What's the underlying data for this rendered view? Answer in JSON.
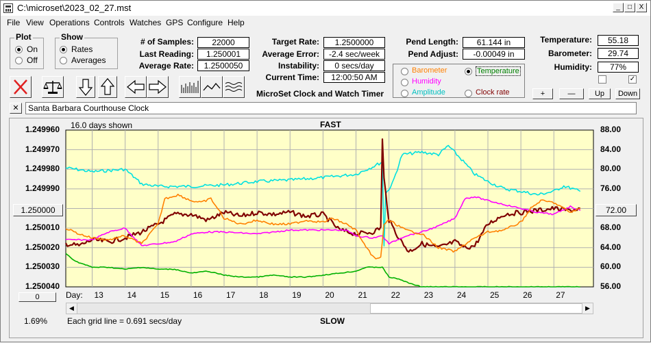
{
  "window": {
    "title": "C:\\microset\\2023_02_27.mst"
  },
  "window_buttons": {
    "minimize": "_",
    "maximize": "□",
    "close": "X"
  },
  "menu": [
    "File",
    "View",
    "Operations",
    "Controls",
    "Watches",
    "GPS",
    "Configure",
    "Help"
  ],
  "plot_group": {
    "label": "Plot",
    "options": [
      "On",
      "Off"
    ],
    "selected": "On"
  },
  "show_group": {
    "label": "Show",
    "options": [
      "Rates",
      "Averages"
    ],
    "selected": "Rates"
  },
  "stats": {
    "samples_label": "# of Samples:",
    "samples": "22000",
    "last_reading_label": "Last Reading:",
    "last_reading": "1.250001",
    "average_rate_label": "Average Rate:",
    "average_rate": "1.2500050",
    "target_rate_label": "Target Rate:",
    "target_rate": "1.2500000",
    "average_error_label": "Average Error:",
    "average_error": "-2.4 sec/week",
    "instability_label": "Instability:",
    "instability": "0 secs/day",
    "current_time_label": "Current Time:",
    "current_time": "12:00:50 AM",
    "pend_length_label": "Pend Length:",
    "pend_length": "61.144 in",
    "pend_adjust_label": "Pend Adjust:",
    "pend_adjust": "-0.00049 in",
    "temperature_label": "Temperature:",
    "temperature": "55.18",
    "barometer_label": "Barometer:",
    "barometer": "29.74",
    "humidity_label": "Humidity:",
    "humidity": "77%"
  },
  "app_caption": "MicroSet Clock and Watch Timer",
  "legend": {
    "items": [
      {
        "label": "Barometer",
        "color": "#ff8000",
        "selected": false
      },
      {
        "label": "Temperature",
        "color": "#008000",
        "selected": true
      },
      {
        "label": "Humidity",
        "color": "#ff00ff",
        "selected": false
      },
      {
        "label": "Amplitude",
        "color": "#00c0c0",
        "selected": false
      },
      {
        "label": "Clock rate",
        "color": "#800000",
        "selected": false
      }
    ]
  },
  "right_buttons": {
    "plus": "+",
    "minus": "—",
    "up": "Up",
    "down": "Down"
  },
  "clock_name": "Santa Barbara Courthouse Clock",
  "close_x": "✕",
  "chart_info": {
    "days_shown": "16.0 days shown",
    "fast_label": "FAST",
    "slow_label": "SLOW",
    "grid_note": "Each grid line = 0.691 secs/day",
    "percent": "1.69%",
    "center_button": "1.250000",
    "right_center_button": "72.00",
    "zero_button": "0",
    "day_label": "Day:"
  },
  "chart_data": {
    "type": "line",
    "x_ticks": [
      "13",
      "14",
      "15",
      "16",
      "17",
      "18",
      "19",
      "20",
      "21",
      "22",
      "23",
      "24",
      "25",
      "26",
      "27"
    ],
    "left_axis": {
      "ticks": [
        "1.249960",
        "1.249970",
        "1.249980",
        "1.249990",
        "1.250000",
        "1.250010",
        "1.250020",
        "1.250030",
        "1.250040"
      ],
      "range": [
        1.24996,
        1.25004
      ]
    },
    "right_axis": {
      "ticks": [
        "88.00",
        "84.00",
        "80.00",
        "76.00",
        "72.00",
        "68.00",
        "64.00",
        "60.00",
        "56.00"
      ],
      "range": [
        56,
        88
      ]
    },
    "grid": true,
    "x_range": [
      12.2,
      28.2
    ],
    "series": [
      {
        "name": "Amplitude",
        "color": "#00e0e0",
        "axis": "right",
        "x": [
          12.2,
          13,
          14,
          14.5,
          15,
          16,
          17,
          18,
          19,
          20,
          21,
          21.5,
          21.8,
          21.85,
          21.9,
          22.1,
          22.4,
          23,
          23.5,
          23.8,
          24.2,
          24.6,
          25,
          25.5,
          26,
          26.5,
          27,
          27.3,
          27.8
        ],
        "y": [
          80.3,
          79.5,
          80,
          77,
          76.5,
          76.5,
          76.8,
          77.5,
          77.8,
          78.3,
          79,
          80.5,
          81.5,
          64.5,
          75,
          77,
          83,
          83.5,
          83,
          84.8,
          82,
          79,
          77.5,
          76,
          75.5,
          74.8,
          75.5,
          76.6,
          75.5
        ]
      },
      {
        "name": "Clock rate",
        "color": "#800000",
        "axis": "left",
        "x": [
          12.2,
          12.6,
          13,
          13.5,
          14,
          14.5,
          15,
          15.5,
          16,
          16.5,
          17,
          17.5,
          18,
          18.5,
          19,
          19.5,
          20,
          20.5,
          21,
          21.5,
          21.75,
          21.8,
          21.85,
          22,
          22.3,
          22.6,
          23,
          23.5,
          24,
          24.3,
          24.6,
          25,
          25.5,
          26,
          26.5,
          27,
          27.5,
          27.8
        ],
        "y": [
          1.250018,
          1.250019,
          1.250016,
          1.250017,
          1.250015,
          1.250012,
          1.250008,
          1.250003,
          1.250003,
          1.250006,
          1.250002,
          1.250004,
          1.250002,
          1.250003,
          1.250002,
          1.250004,
          1.250003,
          1.250011,
          1.250013,
          1.250012,
          1.25001,
          1.249965,
          1.249985,
          1.250006,
          1.250015,
          1.250022,
          1.250018,
          1.25002,
          1.250017,
          1.25002,
          1.250019,
          1.250008,
          1.250003,
          1.250002,
          1.250001,
          1.25,
          1.250001,
          1.25
        ]
      },
      {
        "name": "Humidity",
        "color": "#ff00ff",
        "axis": "left",
        "x": [
          12.2,
          13,
          13.5,
          14,
          14.5,
          15,
          15.5,
          16,
          16.5,
          17,
          18,
          19,
          20,
          20.7,
          21,
          21.5,
          21.8,
          22,
          22.5,
          23,
          23.5,
          24,
          24.3,
          24.6,
          25,
          25.5,
          26,
          26.5,
          27,
          27.5,
          27.8
        ],
        "y": [
          1.250016,
          1.250016,
          1.250012,
          1.25001,
          1.250019,
          1.250018,
          1.250017,
          1.250013,
          1.250012,
          1.250012,
          1.250013,
          1.250011,
          1.250011,
          1.250011,
          1.250014,
          1.250015,
          1.250014,
          1.250018,
          1.250014,
          1.250012,
          1.250009,
          1.250005,
          1.249995,
          1.249994,
          1.249996,
          1.249998,
          1.25,
          1.250002,
          1.250003,
          1.249999,
          1.250001
        ]
      },
      {
        "name": "Barometer",
        "color": "#ff8000",
        "axis": "left",
        "x": [
          12.2,
          12.6,
          13,
          13.5,
          14,
          14.5,
          15,
          15.2,
          15.6,
          16,
          16.3,
          16.6,
          17,
          17.5,
          18,
          18.5,
          19,
          19.5,
          20,
          20.3,
          20.7,
          21,
          21.3,
          21.6,
          21.75,
          21.85,
          22,
          22.5,
          23,
          23.5,
          24,
          24.5,
          25,
          25.5,
          26,
          26.3,
          26.6,
          27,
          27.5,
          27.8
        ],
        "y": [
          1.25001,
          1.250013,
          1.250015,
          1.250016,
          1.250014,
          1.250018,
          1.250008,
          1.249995,
          1.249993,
          1.249996,
          1.249997,
          1.249995,
          1.250005,
          1.250008,
          1.250006,
          1.250008,
          1.250008,
          1.250006,
          1.250007,
          1.250005,
          1.250008,
          1.250011,
          1.25002,
          1.250026,
          1.250025,
          1.250008,
          1.250006,
          1.250011,
          1.250013,
          1.25002,
          1.250022,
          1.250016,
          1.250012,
          1.250011,
          1.250007,
          1.25,
          1.249996,
          1.249997,
          1.250002,
          1.25
        ]
      },
      {
        "name": "Temperature",
        "color": "#00b000",
        "axis": "left",
        "x": [
          12.2,
          12.5,
          13,
          13.5,
          14,
          14.5,
          15,
          15.5,
          16,
          16.5,
          17,
          17.5,
          18,
          18.5,
          19,
          19.5,
          20,
          20.5,
          21,
          21.3,
          21.6,
          21.8,
          22,
          22.3,
          22.6,
          23,
          24,
          25,
          26,
          27,
          27.8
        ],
        "y": [
          1.250023,
          1.250027,
          1.25003,
          1.25003,
          1.250031,
          1.25003,
          1.250031,
          1.250031,
          1.250033,
          1.250032,
          1.250034,
          1.250035,
          1.250035,
          1.250034,
          1.250035,
          1.250035,
          1.250034,
          1.250033,
          1.250032,
          1.25003,
          1.25003,
          1.25003,
          1.250035,
          1.250036,
          1.250038,
          1.25004,
          1.25004,
          1.25004,
          1.25004,
          1.25004,
          1.25004
        ]
      }
    ]
  }
}
